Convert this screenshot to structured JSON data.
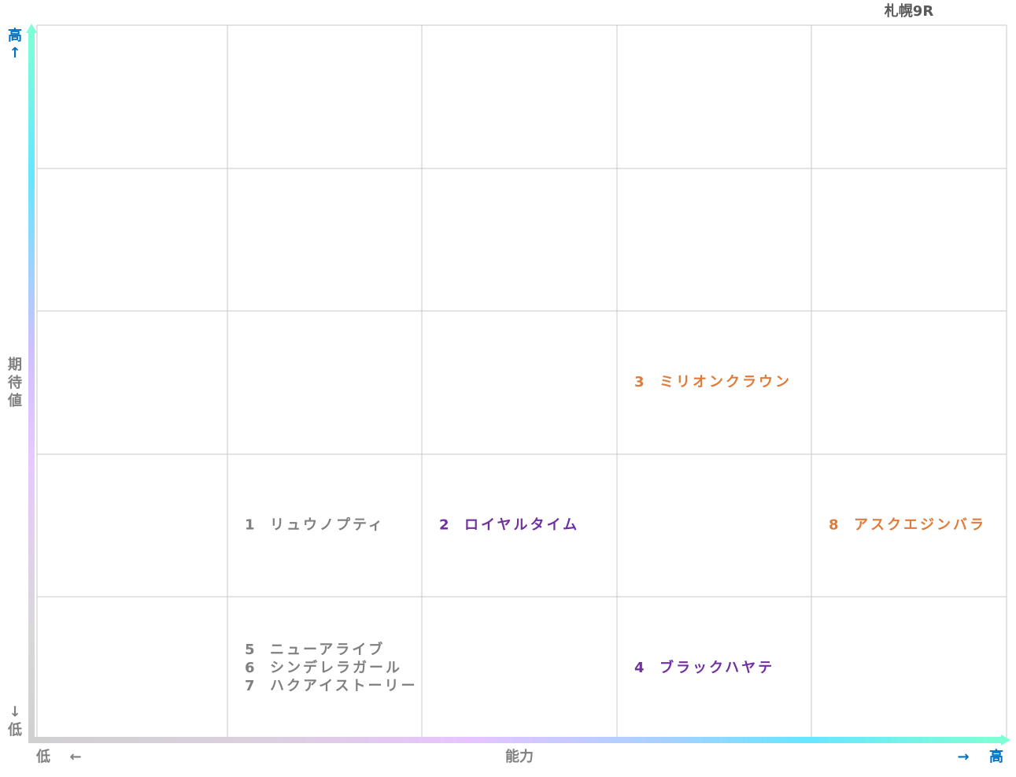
{
  "title": "札幌9R",
  "y_axis": {
    "high": "高",
    "high_arrow": "↑",
    "label": [
      "期",
      "待",
      "値"
    ],
    "low_arrow": "↓",
    "low": "低"
  },
  "x_axis": {
    "low": "低",
    "low_arrow": "←",
    "label": "能力",
    "high_arrow": "→",
    "high": "高"
  },
  "grid": {
    "rows": [
      [
        [],
        [],
        [],
        [],
        []
      ],
      [
        [],
        [],
        [],
        [],
        []
      ],
      [
        [],
        [],
        [],
        [
          {
            "number": 3,
            "name": "ミリオンクラウン",
            "color": "#e07b39"
          }
        ],
        []
      ],
      [
        [],
        [
          {
            "number": 1,
            "name": "リュウノプティ",
            "color": "#808080"
          }
        ],
        [
          {
            "number": 2,
            "name": "ロイヤルタイム",
            "color": "#7030a0"
          }
        ],
        [],
        [
          {
            "number": 8,
            "name": "アスクエジンバラ",
            "color": "#e07b39"
          }
        ]
      ],
      [
        [],
        [
          {
            "number": 5,
            "name": "ニューアライブ",
            "color": "#808080"
          },
          {
            "number": 6,
            "name": "シンデレラガール",
            "color": "#808080"
          },
          {
            "number": 7,
            "name": "ハクアイストーリー",
            "color": "#808080"
          }
        ],
        [],
        [
          {
            "number": 4,
            "name": "ブラックハヤテ",
            "color": "#7030a0"
          }
        ],
        []
      ]
    ]
  }
}
